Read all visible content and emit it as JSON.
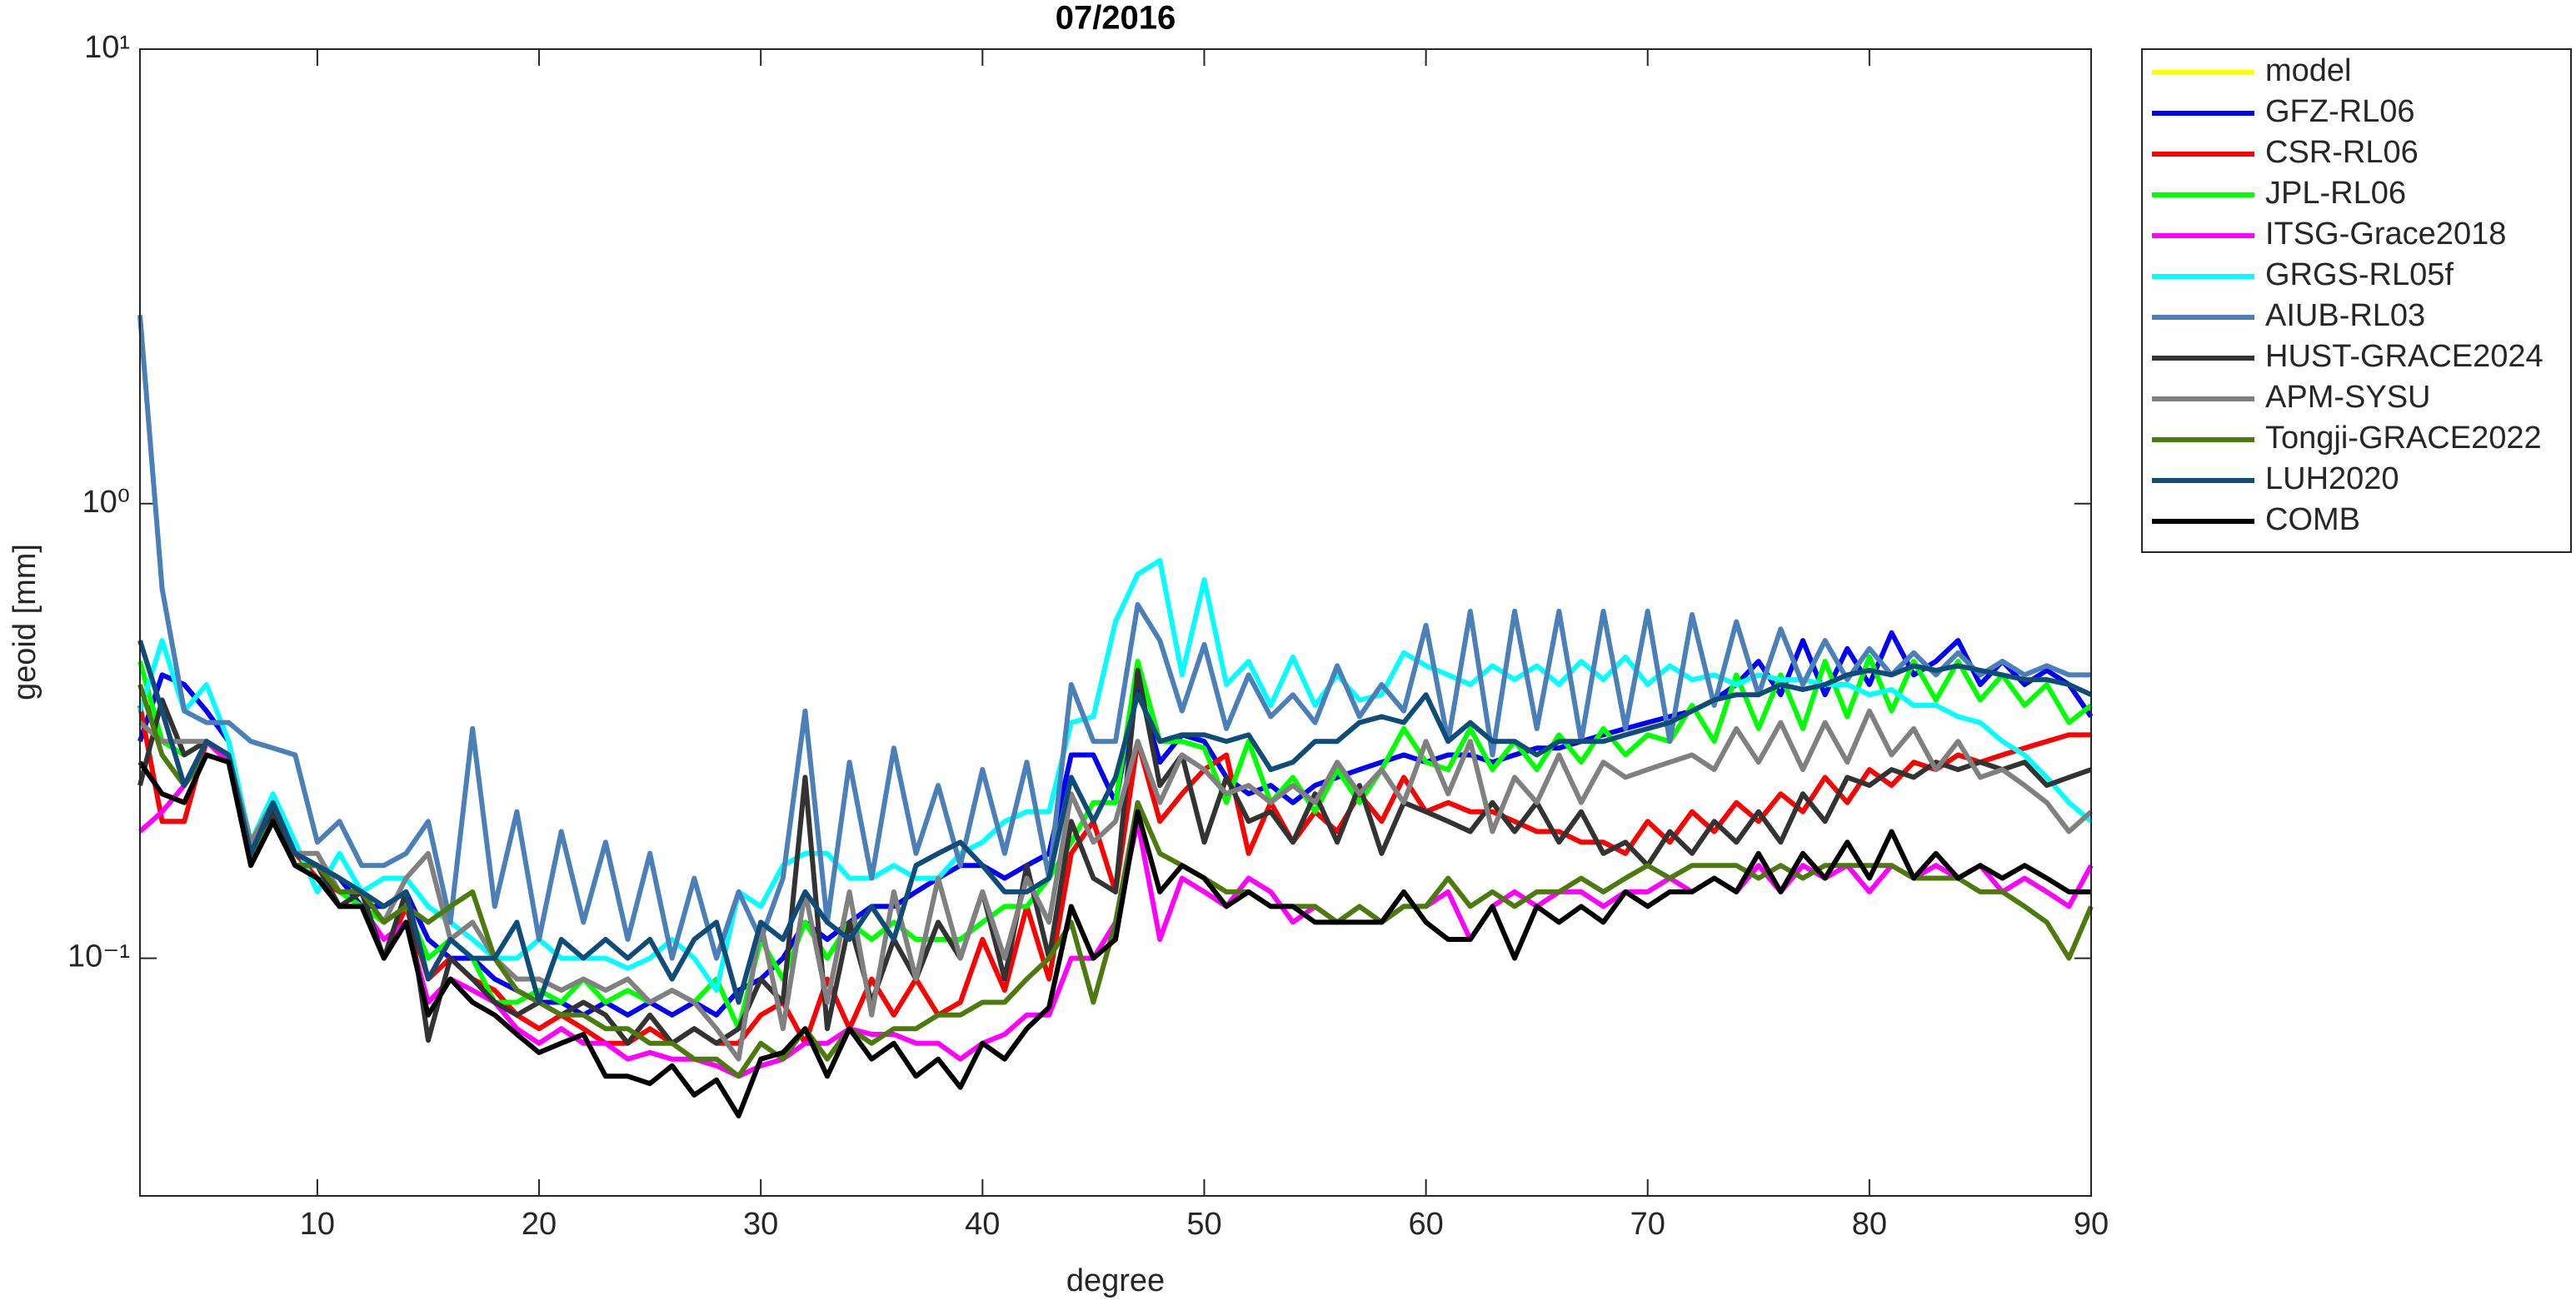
{
  "chart_data": {
    "type": "line",
    "title": "07/2016",
    "x_label": "degree",
    "y_label": "geoid [mm]",
    "log_y": true,
    "legend": "northeastoutside",
    "xlim": [
      2,
      90
    ],
    "xticks": [
      10,
      20,
      30,
      40,
      50,
      60,
      70,
      80,
      90
    ],
    "ylim": [
      0.03,
      10
    ],
    "yticks": [
      {
        "value": 0.1,
        "label": "10⁻¹"
      },
      {
        "value": 1,
        "label": "10⁰"
      },
      {
        "value": 10,
        "label": "10¹"
      }
    ],
    "x": [
      2,
      3,
      4,
      5,
      6,
      7,
      8,
      9,
      10,
      11,
      12,
      13,
      14,
      15,
      16,
      17,
      18,
      19,
      20,
      21,
      22,
      23,
      24,
      25,
      26,
      27,
      28,
      29,
      30,
      31,
      32,
      33,
      34,
      35,
      36,
      37,
      38,
      39,
      40,
      41,
      42,
      43,
      44,
      45,
      46,
      47,
      48,
      49,
      50,
      51,
      52,
      53,
      54,
      55,
      56,
      57,
      58,
      59,
      60,
      61,
      62,
      63,
      64,
      65,
      66,
      67,
      68,
      69,
      70,
      71,
      72,
      73,
      74,
      75,
      76,
      77,
      78,
      79,
      80,
      81,
      82,
      83,
      84,
      85,
      86,
      87,
      88,
      89,
      90
    ],
    "series": [
      {
        "name": "model",
        "color": "#ffff00",
        "values": [
          null,
          null,
          null,
          null,
          null,
          null,
          null,
          null,
          null,
          null,
          null,
          null,
          null,
          null,
          null,
          null,
          null,
          null,
          null,
          null,
          null,
          null,
          null,
          null,
          null,
          null,
          null,
          null,
          null,
          null,
          null,
          null,
          null,
          null,
          null,
          null,
          null,
          null,
          null,
          null,
          null,
          null,
          null,
          null,
          null,
          null,
          null,
          null,
          null,
          null,
          null,
          null,
          null,
          null,
          null,
          null,
          null,
          null,
          null,
          null,
          null,
          null,
          null,
          null,
          null,
          null,
          null,
          null,
          null,
          null,
          null,
          null,
          null,
          null,
          null,
          null,
          null,
          null,
          null,
          null,
          null,
          null,
          null,
          null,
          null,
          null,
          null,
          null,
          null
        ]
      },
      {
        "name": "GFZ-RL06",
        "color": "#0000ff",
        "values": [
          0.3,
          0.42,
          0.4,
          0.35,
          0.3,
          0.17,
          0.22,
          0.17,
          0.16,
          0.15,
          0.13,
          0.13,
          0.14,
          0.11,
          0.1,
          0.1,
          0.09,
          0.085,
          0.08,
          0.08,
          0.075,
          0.08,
          0.075,
          0.08,
          0.075,
          0.08,
          0.075,
          0.085,
          0.09,
          0.1,
          0.12,
          0.11,
          0.12,
          0.13,
          0.13,
          0.14,
          0.15,
          0.16,
          0.16,
          0.15,
          0.16,
          0.17,
          0.28,
          0.28,
          0.22,
          0.4,
          0.27,
          0.31,
          0.3,
          0.25,
          0.23,
          0.24,
          0.22,
          0.24,
          0.25,
          0.26,
          0.27,
          0.28,
          0.27,
          0.28,
          0.28,
          0.27,
          0.28,
          0.29,
          0.29,
          0.3,
          0.31,
          0.32,
          0.33,
          0.34,
          0.35,
          0.37,
          0.4,
          0.45,
          0.38,
          0.5,
          0.38,
          0.48,
          0.4,
          0.52,
          0.42,
          0.45,
          0.5,
          0.4,
          0.45,
          0.4,
          0.43,
          0.4,
          0.34
        ]
      },
      {
        "name": "CSR-RL06",
        "color": "#ff0000",
        "values": [
          0.36,
          0.2,
          0.2,
          0.3,
          0.27,
          0.17,
          0.2,
          0.17,
          0.15,
          0.14,
          0.13,
          0.1,
          0.13,
          0.09,
          0.1,
          0.09,
          0.085,
          0.075,
          0.07,
          0.075,
          0.07,
          0.065,
          0.065,
          0.07,
          0.065,
          0.07,
          0.065,
          0.065,
          0.075,
          0.08,
          0.065,
          0.09,
          0.07,
          0.09,
          0.075,
          0.09,
          0.075,
          0.08,
          0.11,
          0.085,
          0.13,
          0.09,
          0.17,
          0.2,
          0.14,
          0.3,
          0.2,
          0.23,
          0.26,
          0.28,
          0.17,
          0.22,
          0.18,
          0.21,
          0.19,
          0.23,
          0.2,
          0.25,
          0.21,
          0.22,
          0.21,
          0.21,
          0.2,
          0.19,
          0.19,
          0.18,
          0.18,
          0.17,
          0.2,
          0.18,
          0.21,
          0.19,
          0.22,
          0.2,
          0.23,
          0.21,
          0.25,
          0.22,
          0.26,
          0.24,
          0.27,
          0.26,
          0.28,
          0.27,
          0.28,
          0.29,
          0.3,
          0.31,
          0.31
        ]
      },
      {
        "name": "JPL-RL06",
        "color": "#00ff00",
        "values": [
          0.45,
          0.3,
          0.28,
          0.3,
          0.28,
          0.17,
          0.2,
          0.16,
          0.16,
          0.14,
          0.13,
          0.12,
          0.13,
          0.1,
          0.11,
          0.1,
          0.08,
          0.08,
          0.085,
          0.08,
          0.09,
          0.08,
          0.085,
          0.08,
          0.085,
          0.08,
          0.09,
          0.07,
          0.11,
          0.09,
          0.12,
          0.1,
          0.12,
          0.11,
          0.12,
          0.11,
          0.11,
          0.11,
          0.12,
          0.13,
          0.13,
          0.15,
          0.18,
          0.22,
          0.22,
          0.45,
          0.3,
          0.3,
          0.29,
          0.22,
          0.3,
          0.22,
          0.25,
          0.21,
          0.26,
          0.22,
          0.26,
          0.32,
          0.27,
          0.26,
          0.32,
          0.26,
          0.3,
          0.26,
          0.31,
          0.27,
          0.32,
          0.28,
          0.31,
          0.3,
          0.36,
          0.3,
          0.42,
          0.32,
          0.42,
          0.32,
          0.45,
          0.34,
          0.46,
          0.35,
          0.45,
          0.37,
          0.45,
          0.37,
          0.42,
          0.36,
          0.4,
          0.33,
          0.36
        ]
      },
      {
        "name": "ITSG-Grace2018",
        "color": "#ff00ff",
        "values": [
          0.19,
          0.21,
          0.24,
          0.3,
          0.27,
          0.17,
          0.21,
          0.16,
          0.15,
          0.13,
          0.13,
          0.11,
          0.12,
          0.08,
          0.09,
          0.085,
          0.08,
          0.07,
          0.065,
          0.07,
          0.065,
          0.065,
          0.06,
          0.062,
          0.06,
          0.06,
          0.058,
          0.055,
          0.058,
          0.06,
          0.065,
          0.065,
          0.07,
          0.068,
          0.068,
          0.065,
          0.065,
          0.06,
          0.065,
          0.068,
          0.075,
          0.075,
          0.1,
          0.1,
          0.12,
          0.2,
          0.11,
          0.15,
          0.14,
          0.13,
          0.15,
          0.14,
          0.12,
          0.13,
          0.12,
          0.13,
          0.12,
          0.13,
          0.13,
          0.14,
          0.11,
          0.13,
          0.14,
          0.13,
          0.14,
          0.14,
          0.13,
          0.14,
          0.14,
          0.15,
          0.14,
          0.15,
          0.14,
          0.16,
          0.14,
          0.16,
          0.15,
          0.16,
          0.14,
          0.16,
          0.15,
          0.16,
          0.15,
          0.16,
          0.14,
          0.15,
          0.14,
          0.13,
          0.16
        ]
      },
      {
        "name": "GRGS-RL05f",
        "color": "#00ffff",
        "values": [
          0.35,
          0.5,
          0.35,
          0.4,
          0.3,
          0.18,
          0.23,
          0.18,
          0.14,
          0.17,
          0.14,
          0.15,
          0.15,
          0.13,
          0.12,
          0.11,
          0.1,
          0.1,
          0.11,
          0.1,
          0.1,
          0.1,
          0.095,
          0.1,
          0.11,
          0.1,
          0.085,
          0.14,
          0.13,
          0.16,
          0.17,
          0.17,
          0.15,
          0.15,
          0.16,
          0.15,
          0.15,
          0.17,
          0.18,
          0.2,
          0.21,
          0.21,
          0.33,
          0.34,
          0.55,
          0.7,
          0.75,
          0.42,
          0.68,
          0.4,
          0.45,
          0.36,
          0.46,
          0.36,
          0.42,
          0.37,
          0.38,
          0.47,
          0.44,
          0.42,
          0.4,
          0.44,
          0.41,
          0.44,
          0.4,
          0.45,
          0.41,
          0.46,
          0.4,
          0.44,
          0.41,
          0.42,
          0.4,
          0.42,
          0.41,
          0.41,
          0.4,
          0.4,
          0.38,
          0.39,
          0.36,
          0.36,
          0.34,
          0.33,
          0.3,
          0.28,
          0.25,
          0.22,
          0.2
        ]
      },
      {
        "name": "AIUB-RL03",
        "color": "#4a7fb8",
        "values": [
          2.6,
          0.65,
          0.35,
          0.33,
          0.33,
          0.3,
          0.29,
          0.28,
          0.18,
          0.2,
          0.16,
          0.16,
          0.17,
          0.2,
          0.12,
          0.32,
          0.13,
          0.21,
          0.11,
          0.19,
          0.12,
          0.18,
          0.11,
          0.17,
          0.1,
          0.15,
          0.1,
          0.14,
          0.11,
          0.15,
          0.35,
          0.12,
          0.27,
          0.15,
          0.29,
          0.17,
          0.24,
          0.16,
          0.26,
          0.17,
          0.27,
          0.15,
          0.4,
          0.3,
          0.3,
          0.6,
          0.5,
          0.35,
          0.49,
          0.32,
          0.42,
          0.34,
          0.38,
          0.33,
          0.44,
          0.34,
          0.4,
          0.35,
          0.54,
          0.3,
          0.58,
          0.28,
          0.58,
          0.32,
          0.58,
          0.3,
          0.58,
          0.32,
          0.58,
          0.3,
          0.57,
          0.36,
          0.55,
          0.38,
          0.53,
          0.4,
          0.5,
          0.41,
          0.48,
          0.42,
          0.47,
          0.42,
          0.47,
          0.42,
          0.45,
          0.42,
          0.44,
          0.42,
          0.42
        ]
      },
      {
        "name": "HUST-GRACE2024",
        "color": "#333333",
        "values": [
          0.24,
          0.37,
          0.28,
          0.3,
          0.28,
          0.16,
          0.21,
          0.16,
          0.16,
          0.13,
          0.14,
          0.1,
          0.14,
          0.066,
          0.1,
          0.09,
          0.08,
          0.075,
          0.08,
          0.075,
          0.08,
          0.075,
          0.065,
          0.075,
          0.065,
          0.07,
          0.065,
          0.07,
          0.09,
          0.08,
          0.25,
          0.07,
          0.12,
          0.08,
          0.11,
          0.09,
          0.12,
          0.1,
          0.14,
          0.09,
          0.16,
          0.1,
          0.2,
          0.15,
          0.14,
          0.43,
          0.24,
          0.28,
          0.18,
          0.25,
          0.2,
          0.21,
          0.18,
          0.23,
          0.18,
          0.24,
          0.17,
          0.22,
          0.21,
          0.2,
          0.19,
          0.22,
          0.19,
          0.22,
          0.18,
          0.21,
          0.17,
          0.18,
          0.16,
          0.19,
          0.17,
          0.2,
          0.18,
          0.21,
          0.18,
          0.23,
          0.2,
          0.25,
          0.24,
          0.26,
          0.25,
          0.27,
          0.26,
          0.27,
          0.26,
          0.27,
          0.24,
          0.25,
          0.26
        ]
      },
      {
        "name": "APM-SYSU",
        "color": "#808080",
        "values": [
          0.33,
          0.3,
          0.3,
          0.3,
          0.28,
          0.18,
          0.22,
          0.17,
          0.17,
          0.14,
          0.14,
          0.12,
          0.15,
          0.17,
          0.11,
          0.12,
          0.1,
          0.09,
          0.09,
          0.085,
          0.09,
          0.085,
          0.09,
          0.08,
          0.085,
          0.08,
          0.07,
          0.06,
          0.12,
          0.07,
          0.14,
          0.08,
          0.14,
          0.075,
          0.14,
          0.09,
          0.15,
          0.1,
          0.14,
          0.1,
          0.15,
          0.12,
          0.23,
          0.18,
          0.2,
          0.3,
          0.22,
          0.28,
          0.26,
          0.23,
          0.24,
          0.22,
          0.24,
          0.22,
          0.27,
          0.23,
          0.26,
          0.22,
          0.3,
          0.23,
          0.3,
          0.19,
          0.25,
          0.22,
          0.28,
          0.22,
          0.27,
          0.25,
          0.26,
          0.27,
          0.28,
          0.26,
          0.32,
          0.27,
          0.33,
          0.26,
          0.33,
          0.27,
          0.35,
          0.28,
          0.32,
          0.26,
          0.3,
          0.25,
          0.26,
          0.24,
          0.22,
          0.19,
          0.21
        ]
      },
      {
        "name": "Tongji-GRACE2022",
        "color": "#4d7a0d",
        "values": [
          0.4,
          0.28,
          0.24,
          0.28,
          0.27,
          0.17,
          0.2,
          0.16,
          0.16,
          0.14,
          0.14,
          0.12,
          0.13,
          0.12,
          0.13,
          0.14,
          0.1,
          0.085,
          0.08,
          0.075,
          0.075,
          0.07,
          0.07,
          0.065,
          0.065,
          0.06,
          0.06,
          0.055,
          0.065,
          0.06,
          0.07,
          0.06,
          0.07,
          0.065,
          0.07,
          0.07,
          0.075,
          0.075,
          0.08,
          0.08,
          0.09,
          0.1,
          0.12,
          0.08,
          0.12,
          0.22,
          0.17,
          0.16,
          0.15,
          0.14,
          0.14,
          0.13,
          0.13,
          0.13,
          0.12,
          0.13,
          0.12,
          0.13,
          0.13,
          0.15,
          0.13,
          0.14,
          0.13,
          0.14,
          0.14,
          0.15,
          0.14,
          0.15,
          0.16,
          0.15,
          0.16,
          0.16,
          0.16,
          0.15,
          0.16,
          0.15,
          0.16,
          0.16,
          0.16,
          0.16,
          0.15,
          0.15,
          0.15,
          0.14,
          0.14,
          0.13,
          0.12,
          0.1,
          0.13
        ]
      },
      {
        "name": "LUH2020",
        "color": "#0f4d78",
        "values": [
          0.5,
          0.35,
          0.24,
          0.3,
          0.28,
          0.17,
          0.22,
          0.17,
          0.16,
          0.15,
          0.14,
          0.13,
          0.14,
          0.09,
          0.11,
          0.1,
          0.1,
          0.12,
          0.08,
          0.11,
          0.1,
          0.11,
          0.1,
          0.11,
          0.09,
          0.11,
          0.12,
          0.08,
          0.12,
          0.11,
          0.14,
          0.12,
          0.11,
          0.13,
          0.11,
          0.16,
          0.17,
          0.18,
          0.16,
          0.14,
          0.14,
          0.15,
          0.25,
          0.2,
          0.25,
          0.38,
          0.3,
          0.31,
          0.31,
          0.3,
          0.31,
          0.26,
          0.27,
          0.3,
          0.3,
          0.33,
          0.34,
          0.33,
          0.38,
          0.3,
          0.33,
          0.3,
          0.3,
          0.28,
          0.3,
          0.3,
          0.3,
          0.31,
          0.32,
          0.33,
          0.35,
          0.37,
          0.38,
          0.38,
          0.4,
          0.39,
          0.4,
          0.42,
          0.43,
          0.42,
          0.44,
          0.43,
          0.44,
          0.43,
          0.42,
          0.41,
          0.41,
          0.4,
          0.38
        ]
      },
      {
        "name": "COMB",
        "color": "#000000",
        "values": [
          0.27,
          0.23,
          0.22,
          0.28,
          0.27,
          0.16,
          0.2,
          0.16,
          0.15,
          0.13,
          0.13,
          0.1,
          0.12,
          0.075,
          0.09,
          0.08,
          0.075,
          0.068,
          0.062,
          0.065,
          0.068,
          0.055,
          0.055,
          0.053,
          0.058,
          0.05,
          0.054,
          0.045,
          0.06,
          0.062,
          0.07,
          0.055,
          0.07,
          0.06,
          0.065,
          0.055,
          0.06,
          0.052,
          0.065,
          0.06,
          0.07,
          0.078,
          0.13,
          0.1,
          0.11,
          0.21,
          0.14,
          0.16,
          0.15,
          0.13,
          0.14,
          0.13,
          0.13,
          0.12,
          0.12,
          0.12,
          0.12,
          0.14,
          0.12,
          0.11,
          0.11,
          0.13,
          0.1,
          0.13,
          0.12,
          0.13,
          0.12,
          0.14,
          0.13,
          0.14,
          0.14,
          0.15,
          0.14,
          0.17,
          0.14,
          0.17,
          0.15,
          0.18,
          0.15,
          0.19,
          0.15,
          0.17,
          0.15,
          0.16,
          0.15,
          0.16,
          0.15,
          0.14,
          0.14
        ]
      }
    ]
  }
}
